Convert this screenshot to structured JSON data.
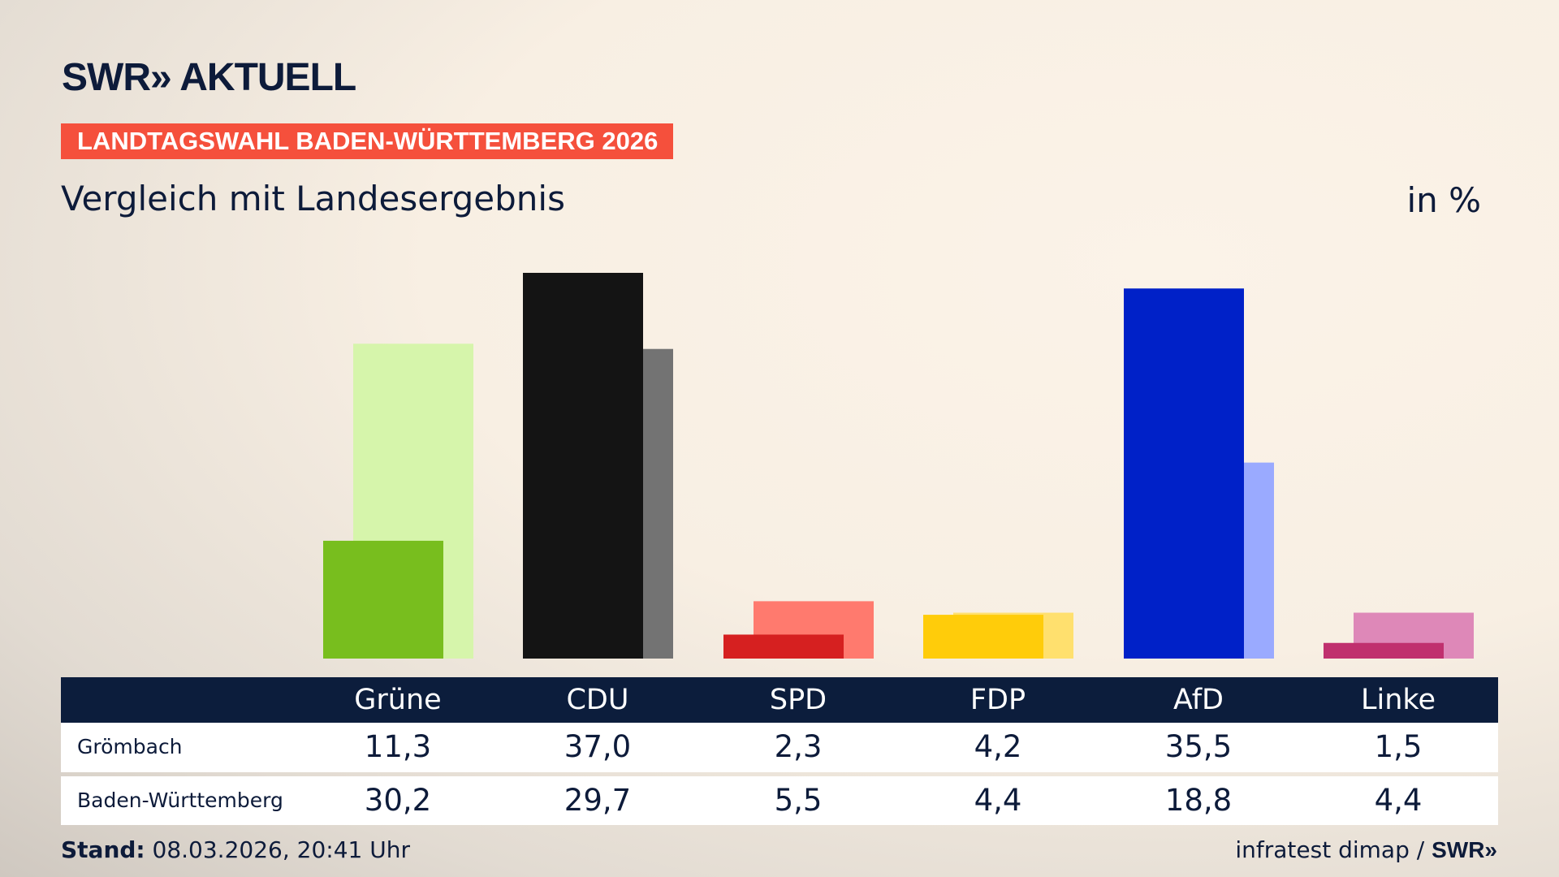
{
  "logo": "SWR» AKTUELL",
  "banner": "LANDTAGSWAHL BADEN-WÜRTTEMBERG 2026",
  "subtitle": "Vergleich mit Landesergebnis",
  "unit": "in %",
  "chart_data": {
    "type": "bar",
    "categories": [
      "Grüne",
      "CDU",
      "SPD",
      "FDP",
      "AfD",
      "Linke"
    ],
    "series": [
      {
        "name": "Grömbach",
        "values": [
          11.3,
          37.0,
          2.3,
          4.2,
          35.5,
          1.5
        ],
        "colors": [
          "#78be1e",
          "#141414",
          "#d62020",
          "#ffcc0a",
          "#0021c8",
          "#c0306e"
        ]
      },
      {
        "name": "Baden-Württemberg",
        "values": [
          30.2,
          29.7,
          5.5,
          4.4,
          18.8,
          4.4
        ],
        "colors": [
          "#d6f5ab",
          "#737373",
          "#ff7a6e",
          "#ffe06e",
          "#9aaaff",
          "#de88b8"
        ]
      }
    ],
    "display_values": [
      [
        "11,3",
        "37,0",
        "2,3",
        "4,2",
        "35,5",
        "1,5"
      ],
      [
        "30,2",
        "29,7",
        "5,5",
        "4,4",
        "18,8",
        "4,4"
      ]
    ],
    "ylim": [
      0,
      37
    ],
    "grid": false
  },
  "footer": {
    "label": "Stand:",
    "value": " 08.03.2026, 20:41 Uhr"
  },
  "source": {
    "text": "infratest dimap / ",
    "logo": "SWR»"
  }
}
